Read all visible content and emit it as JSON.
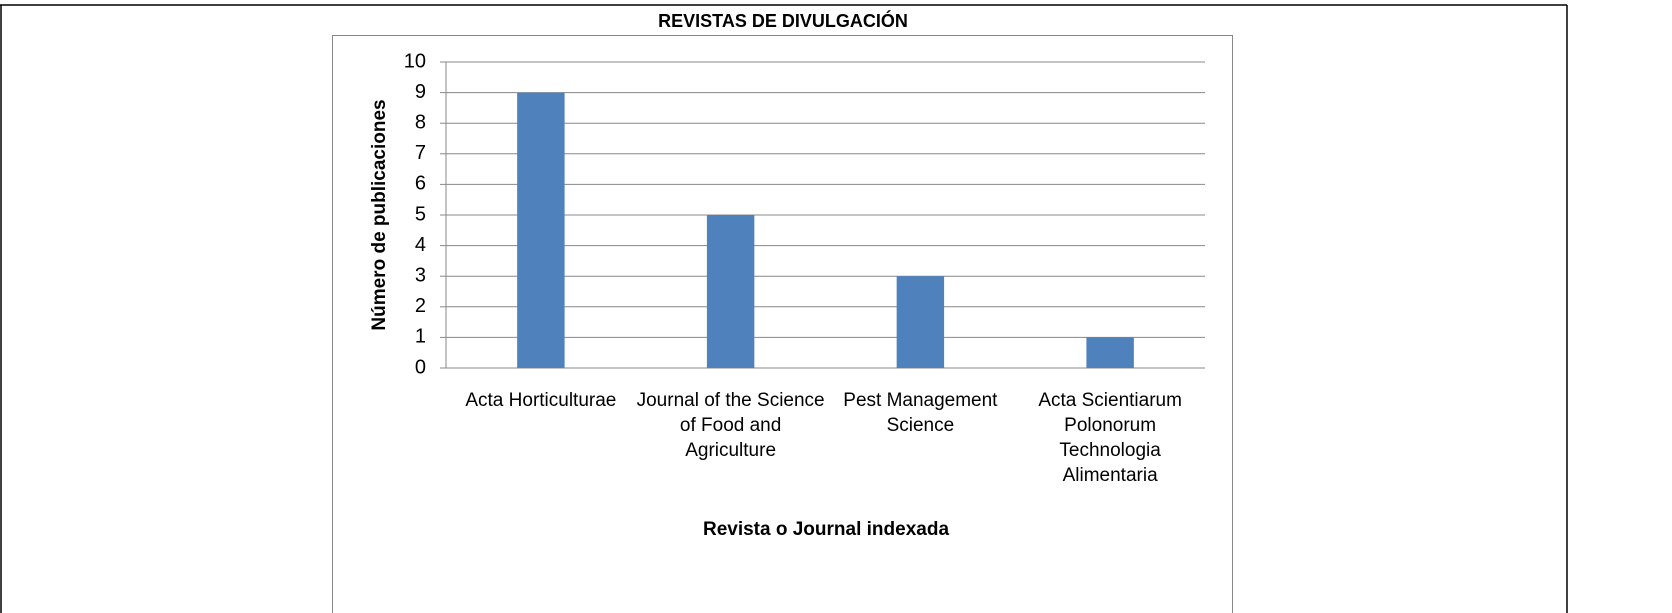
{
  "chart_data": {
    "type": "bar",
    "title": "REVISTAS DE DIVULGACIÓN",
    "categories": [
      "Acta Horticulturae",
      "Journal of the Science of Food and Agriculture",
      "Pest Management Science",
      "Acta Scientiarum Polonorum Technologia Alimentaria"
    ],
    "values": [
      9,
      5,
      3,
      1
    ],
    "color": "#4f81bd",
    "x_label": "Revista o Journal indexada",
    "y_label": "Número de publicaciones",
    "ylim": [
      0,
      10
    ],
    "yticks": [
      0,
      1,
      2,
      3,
      4,
      5,
      6,
      7,
      8,
      9,
      10
    ],
    "grid": true,
    "legend": false
  }
}
